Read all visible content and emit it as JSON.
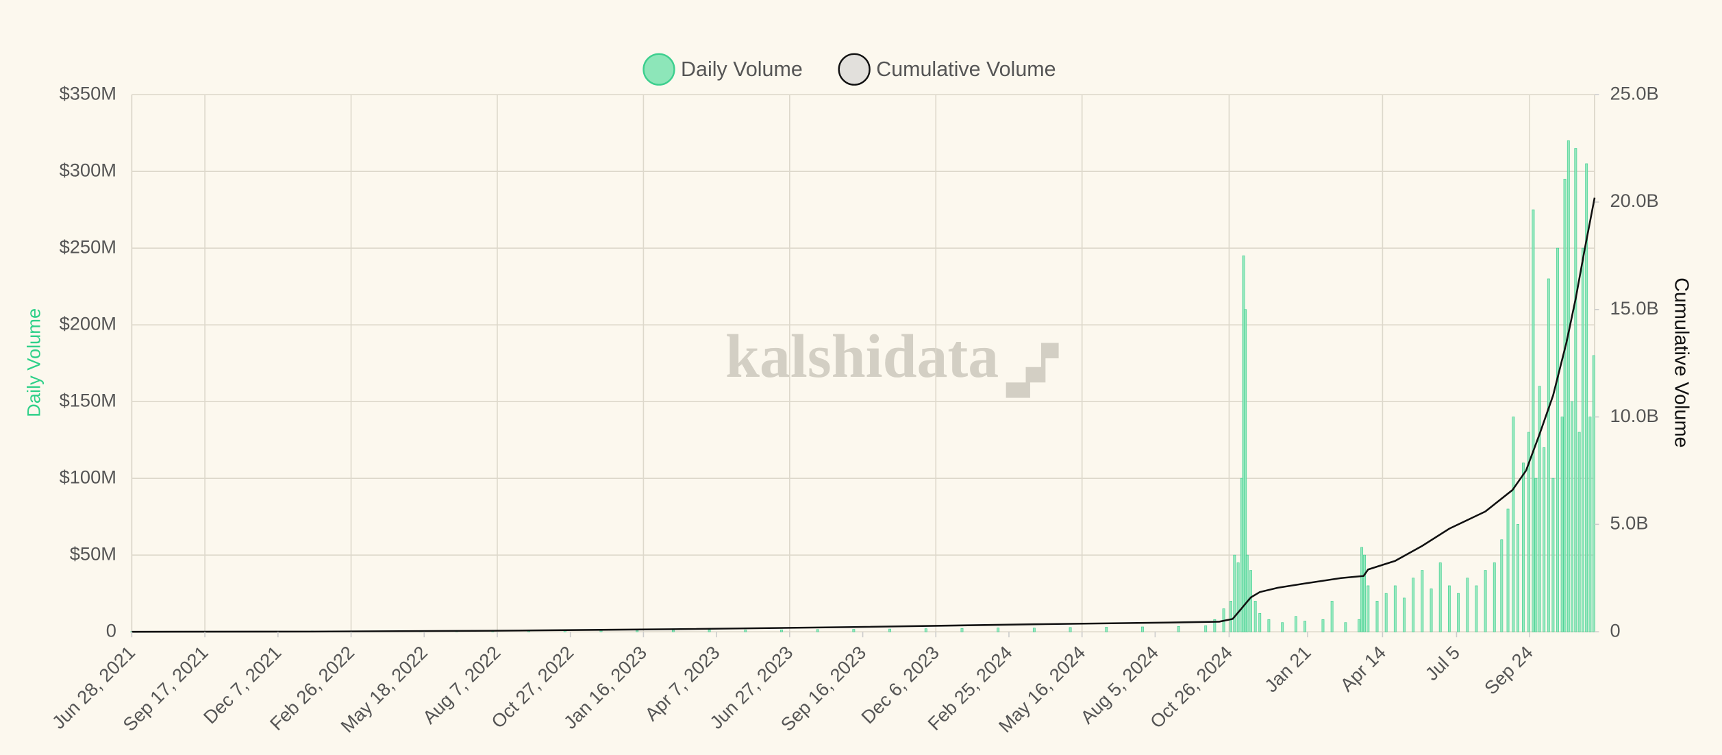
{
  "chart_data": {
    "type": "bar+line",
    "watermark": "kalshidata",
    "y_label": "Daily Volume",
    "y2_label": "Cumulative Volume",
    "xlim": [
      0,
      1621
    ],
    "xticks": [
      {
        "value": 0,
        "label": "Jun 28, 2021"
      },
      {
        "value": 81,
        "label": "Sep 17, 2021"
      },
      {
        "value": 162,
        "label": "Dec 7, 2021"
      },
      {
        "value": 243,
        "label": "Feb 26, 2022"
      },
      {
        "value": 324,
        "label": "May 18, 2022"
      },
      {
        "value": 405,
        "label": "Aug 7, 2022"
      },
      {
        "value": 486,
        "label": "Oct 27, 2022"
      },
      {
        "value": 567,
        "label": "Jan 16, 2023"
      },
      {
        "value": 648,
        "label": "Apr 7, 2023"
      },
      {
        "value": 729,
        "label": "Jun 27, 2023"
      },
      {
        "value": 810,
        "label": "Sep 16, 2023"
      },
      {
        "value": 891,
        "label": "Dec 6, 2023"
      },
      {
        "value": 972,
        "label": "Feb 25, 2024"
      },
      {
        "value": 1053,
        "label": "May 16, 2024"
      },
      {
        "value": 1134,
        "label": "Aug 5, 2024"
      },
      {
        "value": 1216,
        "label": "Oct 26, 2024"
      },
      {
        "value": 1303,
        "label": "Jan 21"
      },
      {
        "value": 1386,
        "label": "Apr 14"
      },
      {
        "value": 1468,
        "label": "Jul 5"
      },
      {
        "value": 1549,
        "label": "Sep 24"
      }
    ],
    "ylim": [
      0,
      350
    ],
    "yticks": [
      0,
      {
        "value": 50,
        "label": "$50M"
      },
      {
        "value": 100,
        "label": "$100M"
      },
      {
        "value": 150,
        "label": "$150M"
      },
      {
        "value": 200,
        "label": "$200M"
      },
      {
        "value": 250,
        "label": "$250M"
      },
      {
        "value": 300,
        "label": "$300M"
      },
      {
        "value": 350,
        "label": "$350M"
      }
    ],
    "y2lim": [
      0,
      25
    ],
    "y2ticks": [
      0,
      {
        "value": 5,
        "label": "5.0B"
      },
      {
        "value": 10,
        "label": "10.0B"
      },
      {
        "value": 15,
        "label": "15.0B"
      },
      {
        "value": 20,
        "label": "20.0B"
      },
      {
        "value": 25,
        "label": "25.0B"
      }
    ],
    "grid": true,
    "legend": "top",
    "series": [
      {
        "name": "Daily Volume",
        "kind": "bar",
        "color": "#8de6b9",
        "x": [
          0,
          40,
          80,
          120,
          160,
          200,
          240,
          280,
          320,
          360,
          400,
          440,
          480,
          520,
          560,
          600,
          640,
          680,
          720,
          760,
          800,
          840,
          880,
          920,
          960,
          1000,
          1040,
          1080,
          1120,
          1160,
          1190,
          1200,
          1210,
          1218,
          1222,
          1226,
          1230,
          1232,
          1234,
          1236,
          1240,
          1245,
          1250,
          1260,
          1275,
          1290,
          1300,
          1320,
          1330,
          1345,
          1360,
          1363,
          1366,
          1370,
          1380,
          1390,
          1400,
          1410,
          1420,
          1430,
          1440,
          1450,
          1460,
          1470,
          1480,
          1490,
          1500,
          1510,
          1518,
          1525,
          1531,
          1536,
          1542,
          1548,
          1553,
          1556,
          1560,
          1565,
          1570,
          1575,
          1580,
          1585,
          1588,
          1592,
          1596,
          1600,
          1604,
          1608,
          1612,
          1616,
          1620
        ],
        "values": [
          0.1,
          0.2,
          0.3,
          0.3,
          0.4,
          0.5,
          0.5,
          0.6,
          0.6,
          0.7,
          0.8,
          0.8,
          0.9,
          1,
          1,
          1.1,
          1.2,
          1.2,
          1.3,
          1.5,
          1.6,
          1.8,
          2,
          2.2,
          2.5,
          2.4,
          2.8,
          3,
          3.2,
          3.5,
          4,
          8,
          15,
          20,
          50,
          45,
          100,
          245,
          210,
          50,
          40,
          20,
          12,
          8,
          6,
          10,
          7,
          8,
          20,
          6,
          8,
          55,
          50,
          30,
          20,
          25,
          30,
          22,
          35,
          40,
          28,
          45,
          30,
          25,
          35,
          30,
          40,
          45,
          60,
          80,
          140,
          70,
          110,
          130,
          275,
          100,
          160,
          120,
          230,
          100,
          250,
          140,
          295,
          320,
          150,
          315,
          130,
          250,
          305,
          140,
          180
        ]
      },
      {
        "name": "Cumulative Volume",
        "kind": "line",
        "axis": "y2",
        "color": "#111111",
        "x": [
          0,
          200,
          400,
          600,
          800,
          1000,
          1150,
          1205,
          1220,
          1230,
          1240,
          1250,
          1270,
          1300,
          1340,
          1365,
          1370,
          1400,
          1430,
          1460,
          1500,
          1530,
          1545,
          1560,
          1575,
          1590,
          1600,
          1610,
          1621
        ],
        "values": [
          0,
          0.01,
          0.05,
          0.12,
          0.22,
          0.35,
          0.43,
          0.47,
          0.6,
          1.1,
          1.6,
          1.85,
          2.05,
          2.25,
          2.5,
          2.6,
          2.9,
          3.3,
          4.0,
          4.8,
          5.6,
          6.6,
          7.5,
          9.2,
          11.0,
          13.5,
          15.5,
          17.8,
          20.2
        ]
      }
    ]
  }
}
